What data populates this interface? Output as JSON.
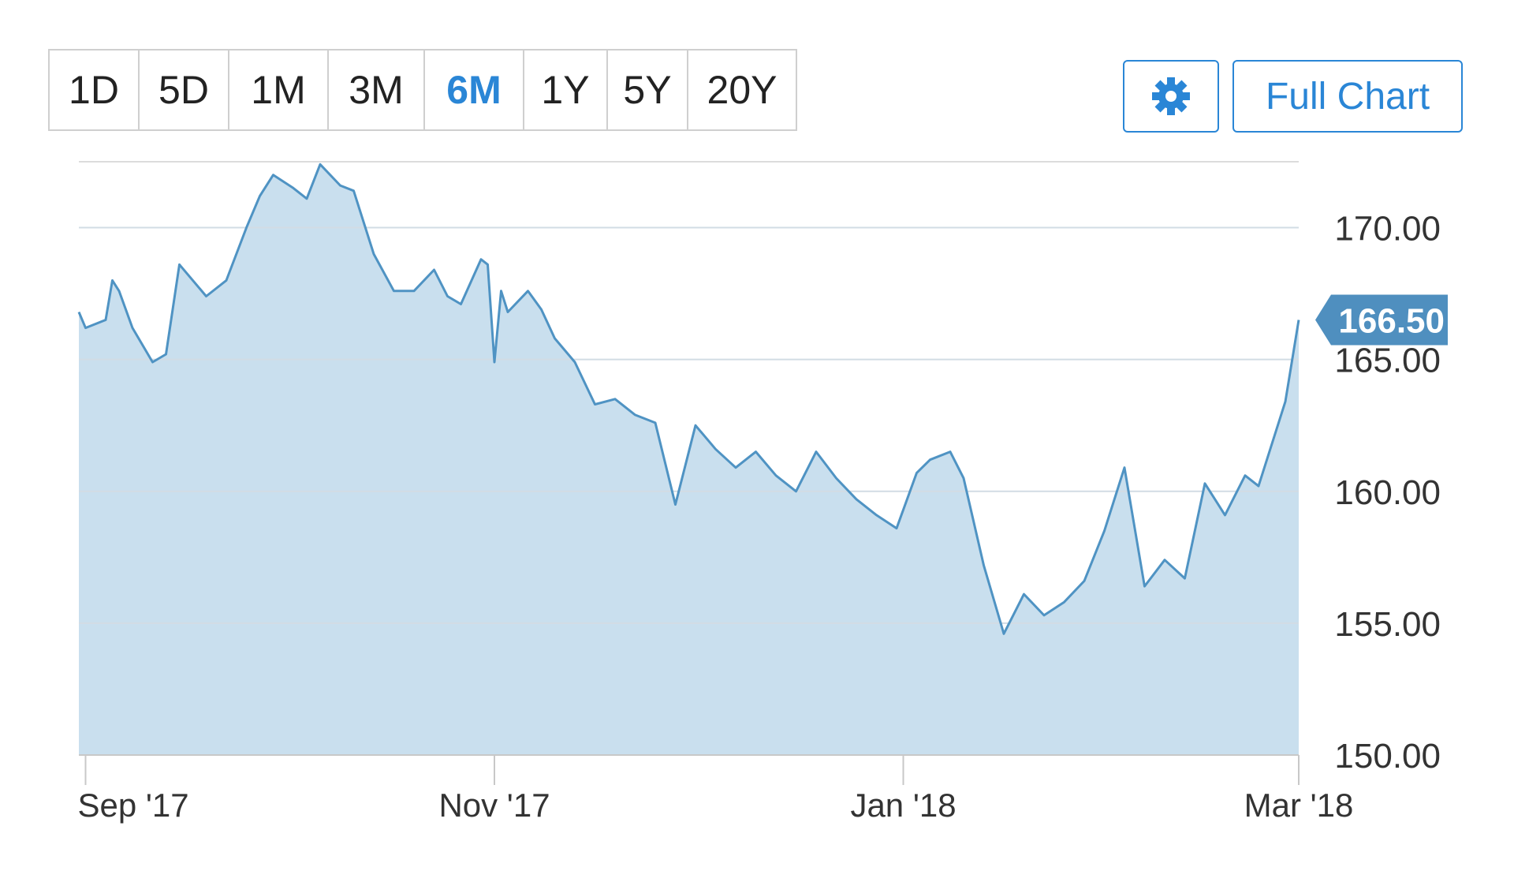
{
  "range_buttons": [
    {
      "label": "1D",
      "active": false
    },
    {
      "label": "5D",
      "active": false
    },
    {
      "label": "1M",
      "active": false
    },
    {
      "label": "3M",
      "active": false
    },
    {
      "label": "6M",
      "active": true
    },
    {
      "label": "1Y",
      "active": false
    },
    {
      "label": "5Y",
      "active": false
    },
    {
      "label": "20Y",
      "active": false
    }
  ],
  "toolbar": {
    "settings_icon": "gear-icon",
    "full_chart_label": "Full Chart"
  },
  "colors": {
    "accent": "#2a86d6",
    "line": "#4f93c3",
    "fill": "#c9dfee",
    "grid": "#dcdcdc",
    "price_badge": "#4f8fbf"
  },
  "chart_data": {
    "type": "area",
    "title": "",
    "xlabel": "",
    "ylabel": "",
    "ylim": [
      150,
      172.5
    ],
    "y_ticks": [
      "170.00",
      "165.00",
      "160.00",
      "155.00",
      "150.00"
    ],
    "y_tick_values": [
      170,
      165,
      160,
      155,
      150
    ],
    "x_ticks": [
      "Sep '17",
      "Nov '17",
      "Jan '18",
      "Mar '18"
    ],
    "x_tick_values": [
      "2017-09-01",
      "2017-11-01",
      "2018-01-01",
      "2018-03-01"
    ],
    "current_price": "166.50",
    "grid": true,
    "series": [
      {
        "x": [
          "2017-08-31",
          "2017-09-01",
          "2017-09-04",
          "2017-09-05",
          "2017-09-06",
          "2017-09-08",
          "2017-09-11",
          "2017-09-13",
          "2017-09-15",
          "2017-09-19",
          "2017-09-22",
          "2017-09-25",
          "2017-09-27",
          "2017-09-29",
          "2017-10-02",
          "2017-10-04",
          "2017-10-06",
          "2017-10-09",
          "2017-10-11",
          "2017-10-14",
          "2017-10-17",
          "2017-10-20",
          "2017-10-23",
          "2017-10-25",
          "2017-10-27",
          "2017-10-30",
          "2017-10-31",
          "2017-11-01",
          "2017-11-02",
          "2017-11-03",
          "2017-11-06",
          "2017-11-08",
          "2017-11-10",
          "2017-11-13",
          "2017-11-16",
          "2017-11-19",
          "2017-11-22",
          "2017-11-25",
          "2017-11-28",
          "2017-12-01",
          "2017-12-04",
          "2017-12-07",
          "2017-12-10",
          "2017-12-13",
          "2017-12-16",
          "2017-12-19",
          "2017-12-22",
          "2017-12-25",
          "2017-12-28",
          "2017-12-31",
          "2018-01-03",
          "2018-01-05",
          "2018-01-08",
          "2018-01-10",
          "2018-01-13",
          "2018-01-16",
          "2018-01-19",
          "2018-01-22",
          "2018-01-25",
          "2018-01-28",
          "2018-01-31",
          "2018-02-03",
          "2018-02-06",
          "2018-02-09",
          "2018-02-12",
          "2018-02-15",
          "2018-02-18",
          "2018-02-21",
          "2018-02-23",
          "2018-02-25",
          "2018-02-27",
          "2018-03-01"
        ],
        "y": [
          166.8,
          166.2,
          166.5,
          168.0,
          167.6,
          166.2,
          164.9,
          165.2,
          168.6,
          167.4,
          168.0,
          170.0,
          171.2,
          172.0,
          171.5,
          171.1,
          172.4,
          171.6,
          171.4,
          169.0,
          167.6,
          167.6,
          168.4,
          167.4,
          167.1,
          168.8,
          168.6,
          164.9,
          167.6,
          166.8,
          167.6,
          166.9,
          165.8,
          164.9,
          163.3,
          163.5,
          162.9,
          162.6,
          159.5,
          162.5,
          161.6,
          160.9,
          161.5,
          160.6,
          160.0,
          161.5,
          160.5,
          159.7,
          159.1,
          158.6,
          160.7,
          161.2,
          161.5,
          160.5,
          157.2,
          154.6,
          156.1,
          155.3,
          155.8,
          156.6,
          158.5,
          160.9,
          156.4,
          157.4,
          156.7,
          160.3,
          159.1,
          160.6,
          160.2,
          161.8,
          163.4,
          166.5
        ]
      }
    ]
  }
}
